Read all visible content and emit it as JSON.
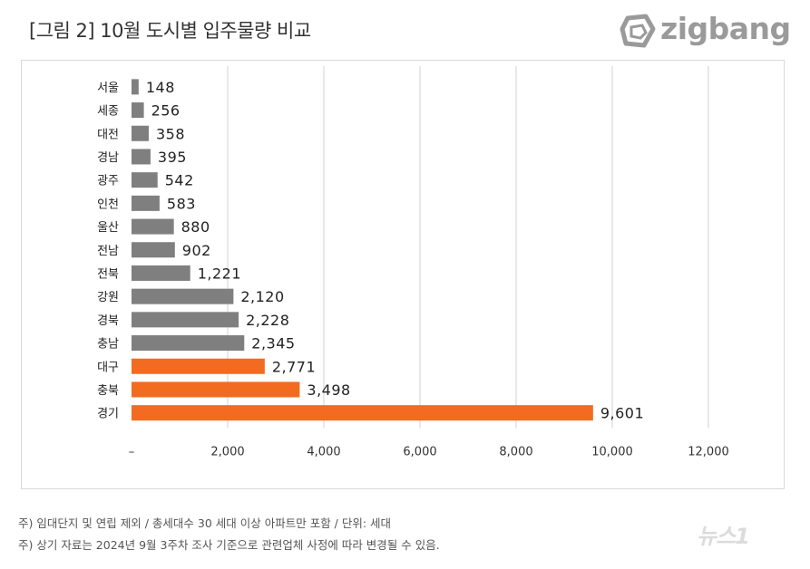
{
  "header": {
    "title": "[그림 2] 10월 도시별 입주물량 비교",
    "logo_text": "zigbang",
    "logo_color": "#9a9a9a"
  },
  "chart_data": {
    "type": "bar",
    "orientation": "horizontal",
    "categories": [
      "서울",
      "세종",
      "대전",
      "경남",
      "광주",
      "인천",
      "울산",
      "전남",
      "전북",
      "강원",
      "경북",
      "충남",
      "대구",
      "충북",
      "경기"
    ],
    "values": [
      148,
      256,
      358,
      395,
      542,
      583,
      880,
      902,
      1221,
      2120,
      2228,
      2345,
      2771,
      3498,
      9601
    ],
    "value_labels": [
      "148",
      "256",
      "358",
      "395",
      "542",
      "583",
      "880",
      "902",
      "1,221",
      "2,120",
      "2,228",
      "2,345",
      "2,771",
      "3,498",
      "9,601"
    ],
    "highlight_categories": [
      "대구",
      "충북",
      "경기"
    ],
    "colors": {
      "default": "#7f7f7f",
      "highlight": "#f26b21"
    },
    "xlim": [
      0,
      12000
    ],
    "xticks": [
      0,
      2000,
      4000,
      6000,
      8000,
      10000,
      12000
    ],
    "xtick_labels": [
      "–",
      "2,000",
      "4,000",
      "6,000",
      "8,000",
      "10,000",
      "12,000"
    ],
    "grid": true,
    "title": "[그림 2] 10월 도시별 입주물량 비교",
    "xlabel": "",
    "ylabel": ""
  },
  "notes": [
    "주) 임대단지 및 연립 제외 / 총세대수 30 세대 이상 아파트만 포함 / 단위: 세대",
    "주) 상기 자료는 2024년 9월 3주차 조사 기준으로 관련업체 사정에 따라 변경될 수 있음."
  ],
  "watermark": "뉴스1"
}
